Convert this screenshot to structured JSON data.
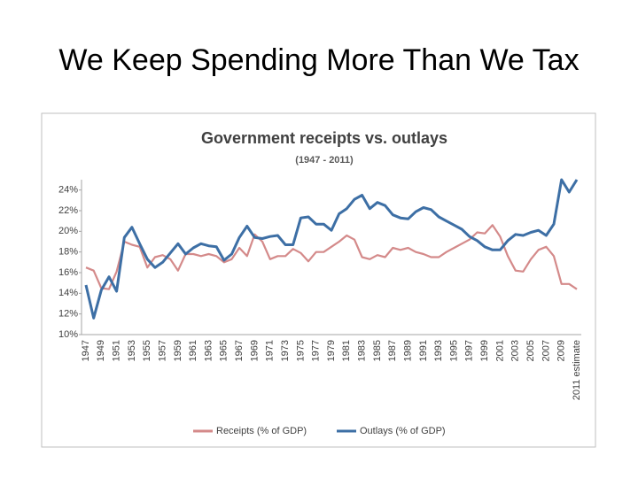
{
  "page_title": "We Keep Spending More Than We Tax",
  "chart_data": {
    "type": "line",
    "title": "Government receipts vs. outlays",
    "subtitle": "(1947 - 2011)",
    "categories": [
      "1947",
      null,
      "1949",
      null,
      "1951",
      null,
      "1953",
      null,
      "1955",
      null,
      "1957",
      null,
      "1959",
      null,
      "1961",
      null,
      "1963",
      null,
      "1965",
      null,
      "1967",
      null,
      "1969",
      null,
      "1971",
      null,
      "1973",
      null,
      "1975",
      null,
      "1977",
      null,
      "1979",
      null,
      "1981",
      null,
      "1983",
      null,
      "1985",
      null,
      "1987",
      null,
      "1989",
      null,
      "1991",
      null,
      "1993",
      null,
      "1995",
      null,
      "1997",
      null,
      "1999",
      null,
      "2001",
      null,
      "2003",
      null,
      "2005",
      null,
      "2007",
      null,
      "2009",
      null,
      "2011 estimate"
    ],
    "series": [
      {
        "name": "Receipts (% of GDP)",
        "color": "#d48a8a",
        "values": [
          16.5,
          16.2,
          14.5,
          14.4,
          16.1,
          19.0,
          18.7,
          18.5,
          16.5,
          17.5,
          17.7,
          17.3,
          16.2,
          17.8,
          17.8,
          17.6,
          17.8,
          17.6,
          17.0,
          17.3,
          18.4,
          17.6,
          19.7,
          19.0,
          17.3,
          17.6,
          17.6,
          18.3,
          17.9,
          17.1,
          18.0,
          18.0,
          18.5,
          19.0,
          19.6,
          19.2,
          17.5,
          17.3,
          17.7,
          17.5,
          18.4,
          18.2,
          18.4,
          18.0,
          17.8,
          17.5,
          17.5,
          18.0,
          18.4,
          18.8,
          19.2,
          19.9,
          19.8,
          20.6,
          19.5,
          17.6,
          16.2,
          16.1,
          17.3,
          18.2,
          18.5,
          17.6,
          14.9,
          14.9,
          14.4
        ]
      },
      {
        "name": "Outlays (% of GDP)",
        "color": "#3d6fa5",
        "values": [
          14.8,
          11.6,
          14.3,
          15.6,
          14.2,
          19.4,
          20.4,
          18.8,
          17.3,
          16.5,
          17.0,
          17.9,
          18.8,
          17.8,
          18.4,
          18.8,
          18.6,
          18.5,
          17.2,
          17.8,
          19.4,
          20.5,
          19.4,
          19.3,
          19.5,
          19.6,
          18.7,
          18.7,
          21.3,
          21.4,
          20.7,
          20.7,
          20.1,
          21.7,
          22.2,
          23.1,
          23.5,
          22.2,
          22.8,
          22.5,
          21.6,
          21.3,
          21.2,
          21.9,
          22.3,
          22.1,
          21.4,
          21.0,
          20.6,
          20.2,
          19.5,
          19.1,
          18.5,
          18.2,
          18.2,
          19.1,
          19.7,
          19.6,
          19.9,
          20.1,
          19.6,
          20.7,
          25.0,
          23.8,
          25.0
        ]
      }
    ],
    "ylim": [
      10,
      25
    ],
    "yticks": [
      {
        "value": 10,
        "label": "10%"
      },
      {
        "value": 12,
        "label": "12%"
      },
      {
        "value": 14,
        "label": "14%"
      },
      {
        "value": 16,
        "label": "16%"
      },
      {
        "value": 18,
        "label": "18%"
      },
      {
        "value": 20,
        "label": "20%"
      },
      {
        "value": 22,
        "label": "22%"
      },
      {
        "value": 24,
        "label": "24%"
      }
    ],
    "grid": false,
    "legend": "bottom"
  }
}
